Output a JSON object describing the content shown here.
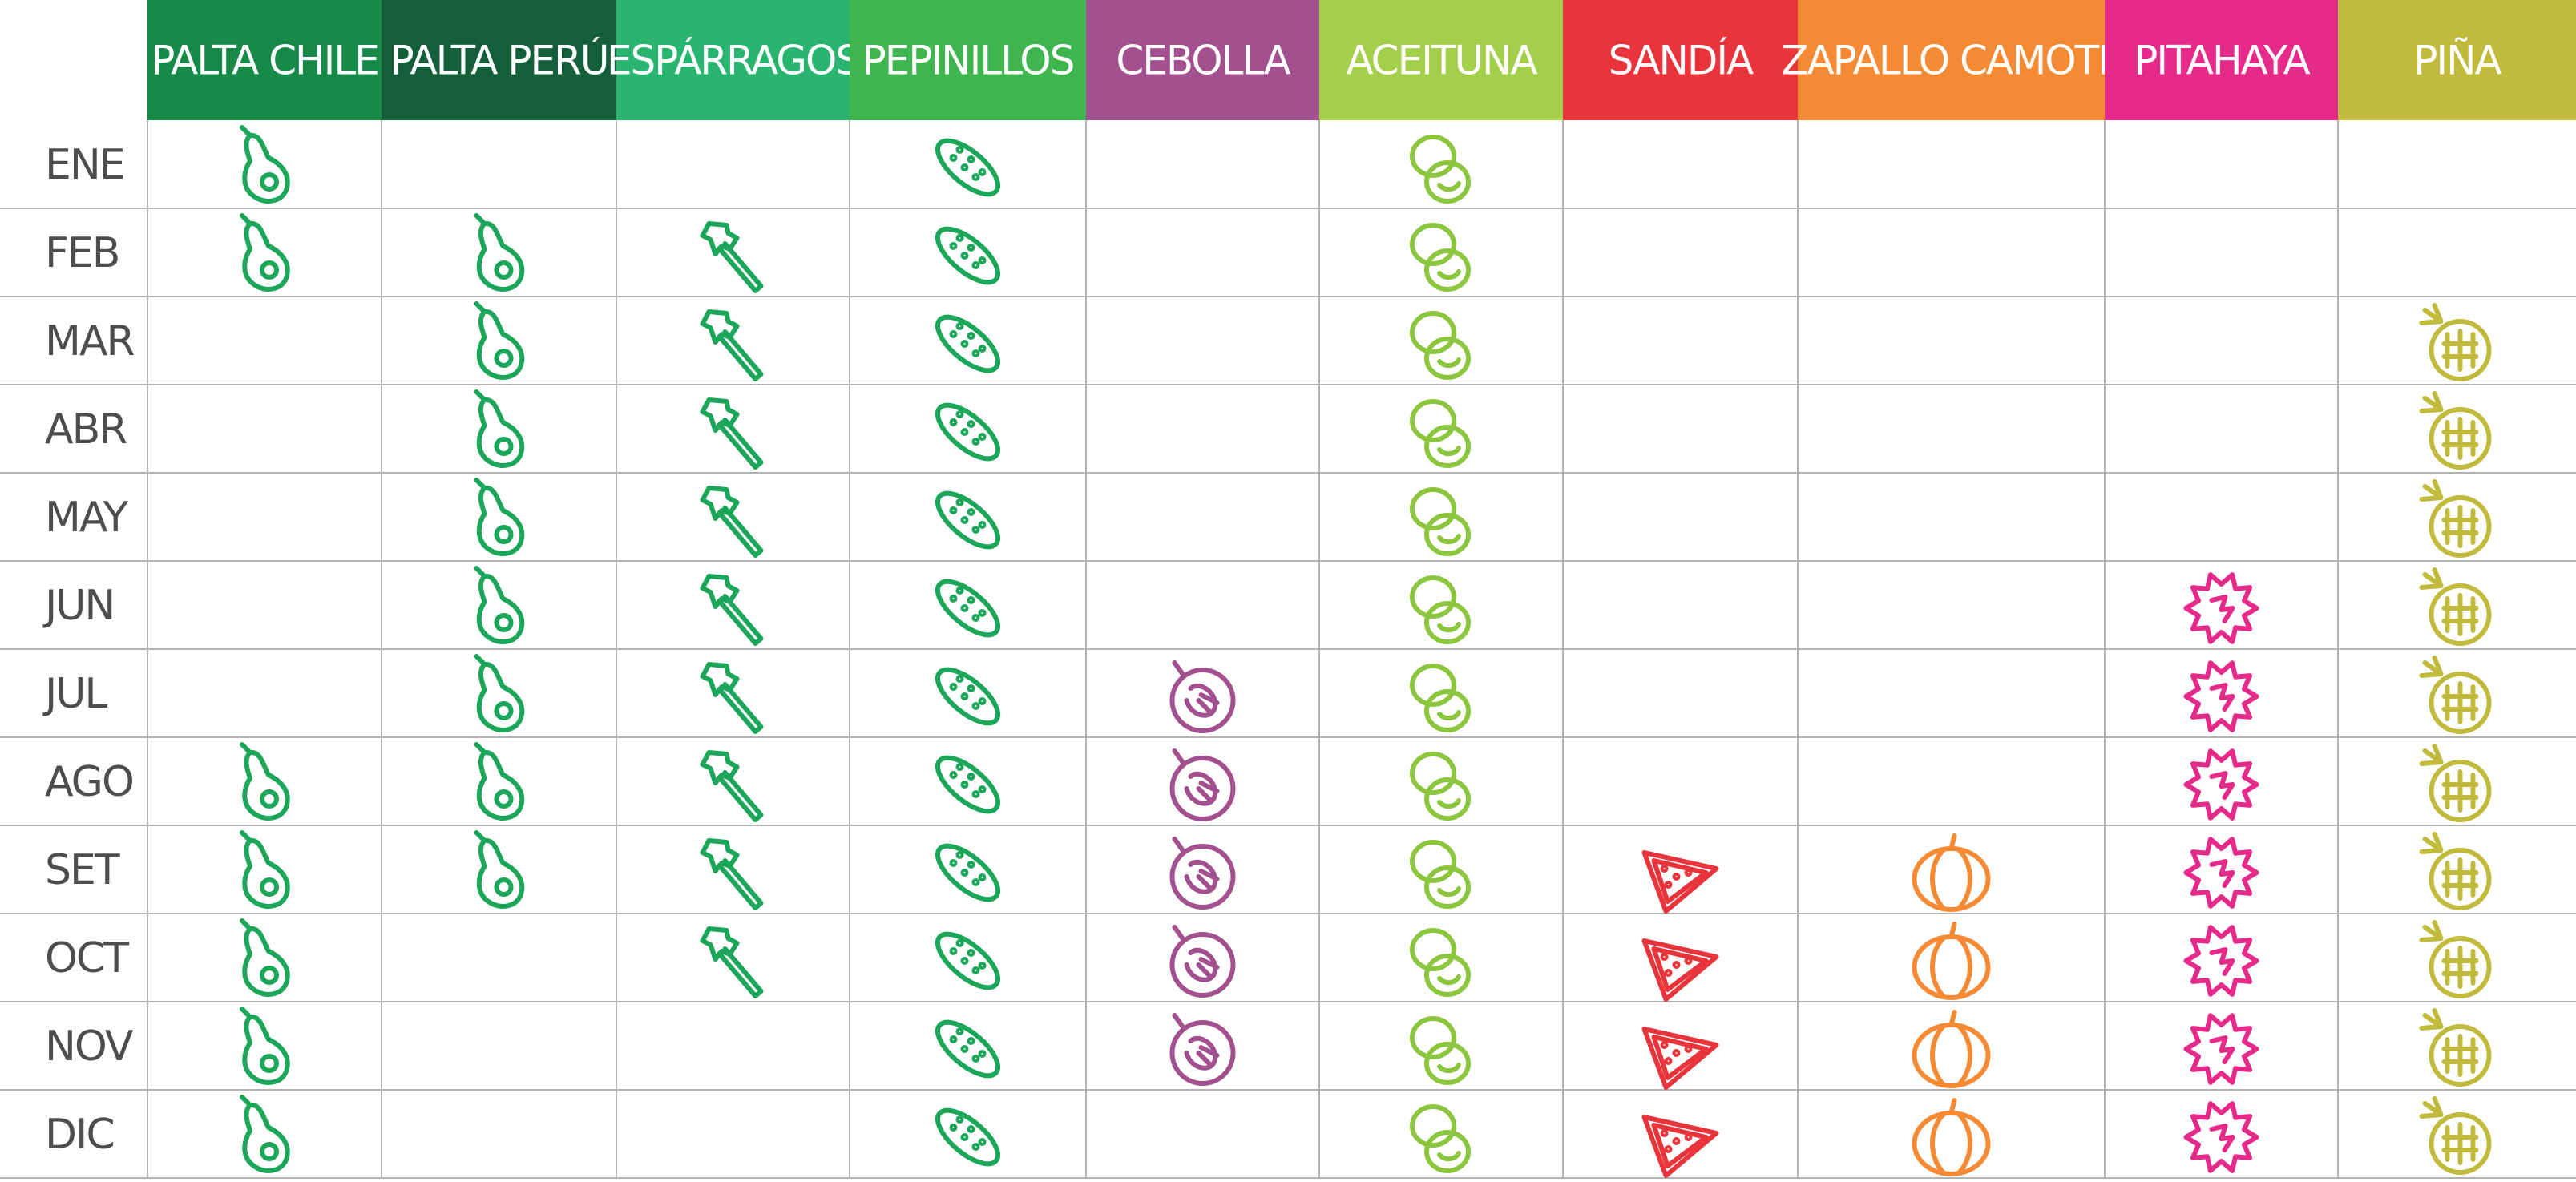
{
  "months": [
    "ENE",
    "FEB",
    "MAR",
    "ABR",
    "MAY",
    "JUN",
    "JUL",
    "AGO",
    "SET",
    "OCT",
    "NOV",
    "DIC"
  ],
  "products": [
    {
      "name": "PALTA CHILE",
      "color": "#178a4a",
      "icon_color": "#1ba65a",
      "available": [
        true,
        true,
        false,
        false,
        false,
        false,
        false,
        true,
        true,
        true,
        true,
        true
      ]
    },
    {
      "name": "PALTA PERÚ",
      "color": "#145e3a",
      "icon_color": "#1ba65a",
      "available": [
        false,
        true,
        true,
        true,
        true,
        true,
        true,
        true,
        true,
        false,
        false,
        false
      ]
    },
    {
      "name": "ESPÁRRAGOS",
      "color": "#29b56f",
      "icon_color": "#1ba65a",
      "available": [
        false,
        true,
        true,
        true,
        true,
        true,
        true,
        true,
        true,
        true,
        false,
        false
      ]
    },
    {
      "name": "PEPINILLOS",
      "color": "#3fb54f",
      "icon_color": "#1ba65a",
      "available": [
        true,
        true,
        true,
        true,
        true,
        true,
        true,
        true,
        true,
        true,
        true,
        true
      ]
    },
    {
      "name": "CEBOLLA",
      "color": "#a3508f",
      "icon_color": "#a3508f",
      "available": [
        false,
        false,
        false,
        false,
        false,
        false,
        true,
        true,
        true,
        true,
        true,
        false
      ]
    },
    {
      "name": "ACEITUNA",
      "color": "#a3cf4b",
      "icon_color": "#8cc63f",
      "available": [
        true,
        true,
        true,
        true,
        true,
        true,
        true,
        true,
        true,
        true,
        true,
        true
      ]
    },
    {
      "name": "SANDÍA",
      "color": "#e8343a",
      "icon_color": "#e8343a",
      "available": [
        false,
        false,
        false,
        false,
        false,
        false,
        false,
        false,
        true,
        true,
        true,
        true
      ]
    },
    {
      "name": "ZAPALLO CAMOTE",
      "color": "#f58a34",
      "icon_color": "#f58a34",
      "available": [
        false,
        false,
        false,
        false,
        false,
        false,
        false,
        false,
        true,
        true,
        true,
        true
      ]
    },
    {
      "name": "PITAHAYA",
      "color": "#e62a8a",
      "icon_color": "#e62a8a",
      "available": [
        false,
        false,
        false,
        false,
        false,
        true,
        true,
        true,
        true,
        true,
        true,
        true
      ]
    },
    {
      "name": "PIÑA",
      "color": "#c0bb3c",
      "icon_color": "#c0bb3c",
      "available": [
        false,
        false,
        true,
        true,
        true,
        true,
        true,
        true,
        true,
        true,
        true,
        true
      ]
    }
  ]
}
